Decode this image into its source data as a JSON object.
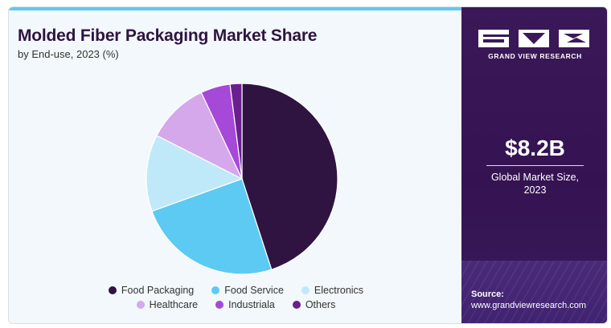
{
  "header": {
    "title": "Molded Fiber Packaging Market Share",
    "subtitle": "by End-use, 2023 (%)"
  },
  "chart_data": {
    "type": "pie",
    "title": "Molded Fiber Packaging Market Share",
    "subtitle": "by End-use, 2023 (%)",
    "categories": [
      "Food Packaging",
      "Food Service",
      "Electronics",
      "Healthcare",
      "Industriala",
      "Others"
    ],
    "values": [
      45.0,
      24.5,
      13.0,
      10.5,
      5.0,
      2.0
    ],
    "colors": [
      "#2f1442",
      "#5ccaf3",
      "#bfe9f9",
      "#d5a8ec",
      "#a648d8",
      "#6a1f8e"
    ],
    "start": "12 o'clock, clockwise",
    "legend_position": "bottom"
  },
  "sidebar": {
    "brand": "GRAND VIEW RESEARCH",
    "market_value": "$8.2B",
    "market_label_line1": "Global Market Size,",
    "market_label_line2": "2023",
    "source_label": "Source:",
    "source_url": "www.grandviewresearch.com"
  },
  "colors": {
    "accent_bar": "#5ccaf3",
    "sidebar_bg": "#3b1858",
    "title_text": "#2f1442"
  }
}
